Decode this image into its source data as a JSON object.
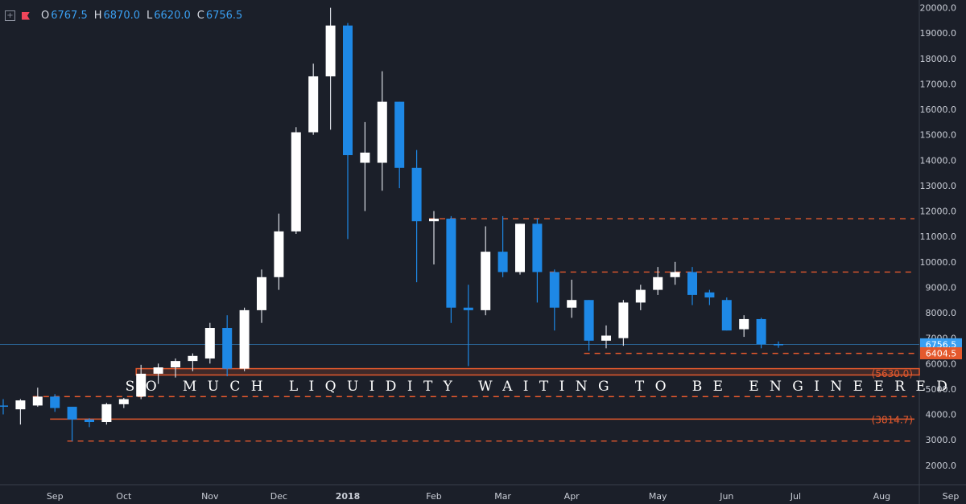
{
  "legend": {
    "o_label": "O",
    "o_value": "6767.5",
    "h_label": "H",
    "h_value": "6870.0",
    "l_label": "L",
    "l_value": "6620.0",
    "c_label": "C",
    "c_value": "6756.5"
  },
  "chart_data": {
    "type": "candlestick",
    "ylim": [
      1000,
      20000
    ],
    "y_ticks": [
      2000,
      3000,
      4000,
      5000,
      6000,
      7000,
      8000,
      9000,
      10000,
      11000,
      12000,
      13000,
      14000,
      15000,
      16000,
      17000,
      18000,
      19000,
      20000
    ],
    "y_tick_labels": [
      "2000.0",
      "3000.0",
      "4000.0",
      "5000.0",
      "6000.0",
      "7000.0",
      "8000.0",
      "9000.0",
      "10000.0",
      "11000.0",
      "12000.0",
      "13000.0",
      "14000.0",
      "15000.0",
      "16000.0",
      "17000.0",
      "18000.0",
      "19000.0",
      "20000.0"
    ],
    "x_labels": [
      {
        "label": "Sep",
        "i": 3
      },
      {
        "label": "Oct",
        "i": 7
      },
      {
        "label": "Nov",
        "i": 12
      },
      {
        "label": "Dec",
        "i": 16
      },
      {
        "label": "2018",
        "i": 20
      },
      {
        "label": "Feb",
        "i": 25
      },
      {
        "label": "Mar",
        "i": 29
      },
      {
        "label": "Apr",
        "i": 33
      },
      {
        "label": "May",
        "i": 38
      },
      {
        "label": "Jun",
        "i": 42
      },
      {
        "label": "Jul",
        "i": 46
      },
      {
        "label": "Aug",
        "i": 51
      },
      {
        "label": "Sep",
        "i": 55
      }
    ],
    "candles": [
      {
        "o": 4350,
        "h": 4600,
        "l": 4000,
        "c": 4300
      },
      {
        "o": 4200,
        "h": 4600,
        "l": 3600,
        "c": 4550
      },
      {
        "o": 4350,
        "h": 5050,
        "l": 4300,
        "c": 4700
      },
      {
        "o": 4700,
        "h": 4800,
        "l": 4100,
        "c": 4250
      },
      {
        "o": 4300,
        "h": 4300,
        "l": 2950,
        "c": 3800
      },
      {
        "o": 3800,
        "h": 3850,
        "l": 3500,
        "c": 3700
      },
      {
        "o": 3700,
        "h": 4450,
        "l": 3600,
        "c": 4400
      },
      {
        "o": 4400,
        "h": 4650,
        "l": 4250,
        "c": 4600
      },
      {
        "o": 4700,
        "h": 5950,
        "l": 4600,
        "c": 5600
      },
      {
        "o": 5600,
        "h": 6000,
        "l": 5200,
        "c": 5850
      },
      {
        "o": 5850,
        "h": 6200,
        "l": 5450,
        "c": 6100
      },
      {
        "o": 6100,
        "h": 6400,
        "l": 5700,
        "c": 6300
      },
      {
        "o": 6200,
        "h": 7600,
        "l": 6000,
        "c": 7400
      },
      {
        "o": 7400,
        "h": 7900,
        "l": 5500,
        "c": 5800
      },
      {
        "o": 5800,
        "h": 8200,
        "l": 5700,
        "c": 8100
      },
      {
        "o": 8100,
        "h": 9700,
        "l": 7600,
        "c": 9400
      },
      {
        "o": 9400,
        "h": 11900,
        "l": 8900,
        "c": 11200
      },
      {
        "o": 11200,
        "h": 15300,
        "l": 11100,
        "c": 15100
      },
      {
        "o": 15100,
        "h": 17800,
        "l": 15000,
        "c": 17300
      },
      {
        "o": 17300,
        "h": 20000,
        "l": 15200,
        "c": 19300
      },
      {
        "o": 19300,
        "h": 19400,
        "l": 10900,
        "c": 14200
      },
      {
        "o": 13900,
        "h": 15500,
        "l": 12000,
        "c": 14300
      },
      {
        "o": 13900,
        "h": 17500,
        "l": 12800,
        "c": 16300
      },
      {
        "o": 16300,
        "h": 16300,
        "l": 12900,
        "c": 13700
      },
      {
        "o": 13700,
        "h": 14400,
        "l": 9200,
        "c": 11600
      },
      {
        "o": 11600,
        "h": 12000,
        "l": 9900,
        "c": 11700
      },
      {
        "o": 11700,
        "h": 11800,
        "l": 7600,
        "c": 8200
      },
      {
        "o": 8200,
        "h": 9100,
        "l": 5900,
        "c": 8100
      },
      {
        "o": 8100,
        "h": 11400,
        "l": 7900,
        "c": 10400
      },
      {
        "o": 10400,
        "h": 11800,
        "l": 9400,
        "c": 9600
      },
      {
        "o": 9600,
        "h": 11500,
        "l": 9500,
        "c": 11500
      },
      {
        "o": 11500,
        "h": 11700,
        "l": 8400,
        "c": 9600
      },
      {
        "o": 9600,
        "h": 9700,
        "l": 7300,
        "c": 8200
      },
      {
        "o": 8200,
        "h": 9300,
        "l": 7800,
        "c": 8500
      },
      {
        "o": 8500,
        "h": 8500,
        "l": 6500,
        "c": 6900
      },
      {
        "o": 6900,
        "h": 7500,
        "l": 6600,
        "c": 7100
      },
      {
        "o": 7000,
        "h": 8500,
        "l": 6700,
        "c": 8400
      },
      {
        "o": 8400,
        "h": 9100,
        "l": 8100,
        "c": 8900
      },
      {
        "o": 8900,
        "h": 9800,
        "l": 8700,
        "c": 9400
      },
      {
        "o": 9400,
        "h": 10000,
        "l": 9100,
        "c": 9600
      },
      {
        "o": 9600,
        "h": 9800,
        "l": 8300,
        "c": 8700
      },
      {
        "o": 8800,
        "h": 8900,
        "l": 8300,
        "c": 8600
      },
      {
        "o": 8500,
        "h": 8600,
        "l": 7300,
        "c": 7300
      },
      {
        "o": 7350,
        "h": 7900,
        "l": 7050,
        "c": 7750
      },
      {
        "o": 7750,
        "h": 7800,
        "l": 6600,
        "c": 6750
      },
      {
        "o": 6767.5,
        "h": 6870,
        "l": 6620,
        "c": 6756.5
      }
    ],
    "price_lines": [
      {
        "value": 11700,
        "style": "dashed",
        "color": "#e4592d",
        "from_i": 25
      },
      {
        "value": 9600,
        "style": "dashed",
        "color": "#e4592d",
        "from_i": 32
      },
      {
        "value": 6400,
        "style": "dashed",
        "color": "#e4592d",
        "from_i": 34
      },
      {
        "value": 4700,
        "style": "dashed",
        "color": "#e4592d",
        "from_i": 2
      },
      {
        "value": 3814.7,
        "style": "solid",
        "color": "#e4592d",
        "from_i": 3
      },
      {
        "value": 2950,
        "style": "dashed",
        "color": "#e4592d",
        "from_i": 4
      }
    ],
    "zone": {
      "low": 5550,
      "high": 5800,
      "color": "#e4592d",
      "from_i": 8
    },
    "current_price": {
      "value": 6756.5,
      "label": "6756.5",
      "color": "#3a9ff1"
    },
    "tag_6404": {
      "value": 6404.5,
      "label": "6404.5",
      "color": "#e4592d"
    },
    "annotation_5630": {
      "value": 5630,
      "label": "(5630.0)",
      "color": "#e4592d"
    },
    "annotation_3814": {
      "value": 3814.7,
      "label": "(3814.7)",
      "color": "#e4592d"
    },
    "caption": {
      "text": "SO MUCH LIQUIDITY WAITING TO BE ENGINEERED",
      "value": 5150,
      "color": "#ffffff"
    },
    "colors": {
      "background": "#1b1f29",
      "up": "#ffffff",
      "down": "#1e88e5",
      "wick": "#b8c0d0",
      "axis_text": "#c9cdd6",
      "divider": "#3a3f4b"
    }
  }
}
